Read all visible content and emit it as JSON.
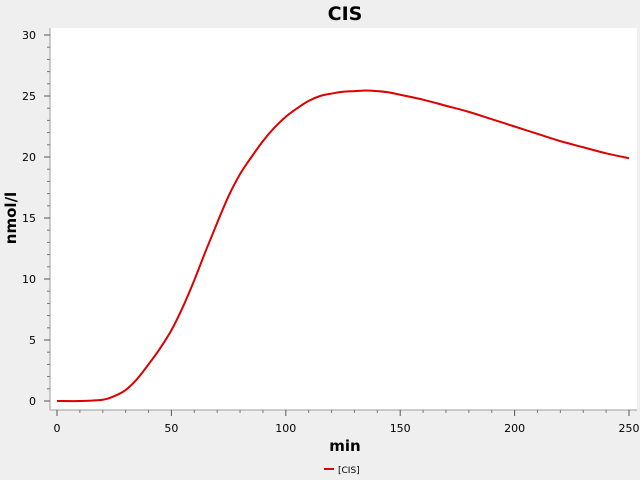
{
  "chart_data": {
    "type": "line",
    "title": "CIS",
    "xlabel": "min",
    "ylabel": "nmol/l",
    "xlim": [
      0,
      250
    ],
    "ylim": [
      0,
      30
    ],
    "x_ticks": [
      "0",
      "50",
      "100",
      "150",
      "200",
      "250"
    ],
    "y_ticks": [
      "0",
      "5",
      "10",
      "15",
      "20",
      "25",
      "30"
    ],
    "grid": false,
    "legend_position": "bottom",
    "series": [
      {
        "name": "[CIS]",
        "color": "#dd0000",
        "x": [
          0,
          10,
          20,
          25,
          30,
          35,
          40,
          45,
          50,
          55,
          60,
          65,
          70,
          75,
          80,
          85,
          90,
          95,
          100,
          105,
          110,
          115,
          120,
          125,
          130,
          135,
          140,
          145,
          150,
          160,
          170,
          180,
          190,
          200,
          210,
          220,
          230,
          240,
          250
        ],
        "y": [
          0,
          0,
          0.1,
          0.4,
          0.9,
          1.8,
          3.0,
          4.3,
          5.8,
          7.7,
          9.9,
          12.3,
          14.6,
          16.8,
          18.6,
          20.0,
          21.3,
          22.4,
          23.3,
          24.0,
          24.6,
          25.0,
          25.2,
          25.35,
          25.4,
          25.45,
          25.4,
          25.3,
          25.1,
          24.7,
          24.2,
          23.7,
          23.1,
          22.5,
          21.9,
          21.3,
          20.8,
          20.3,
          19.9
        ]
      }
    ]
  }
}
